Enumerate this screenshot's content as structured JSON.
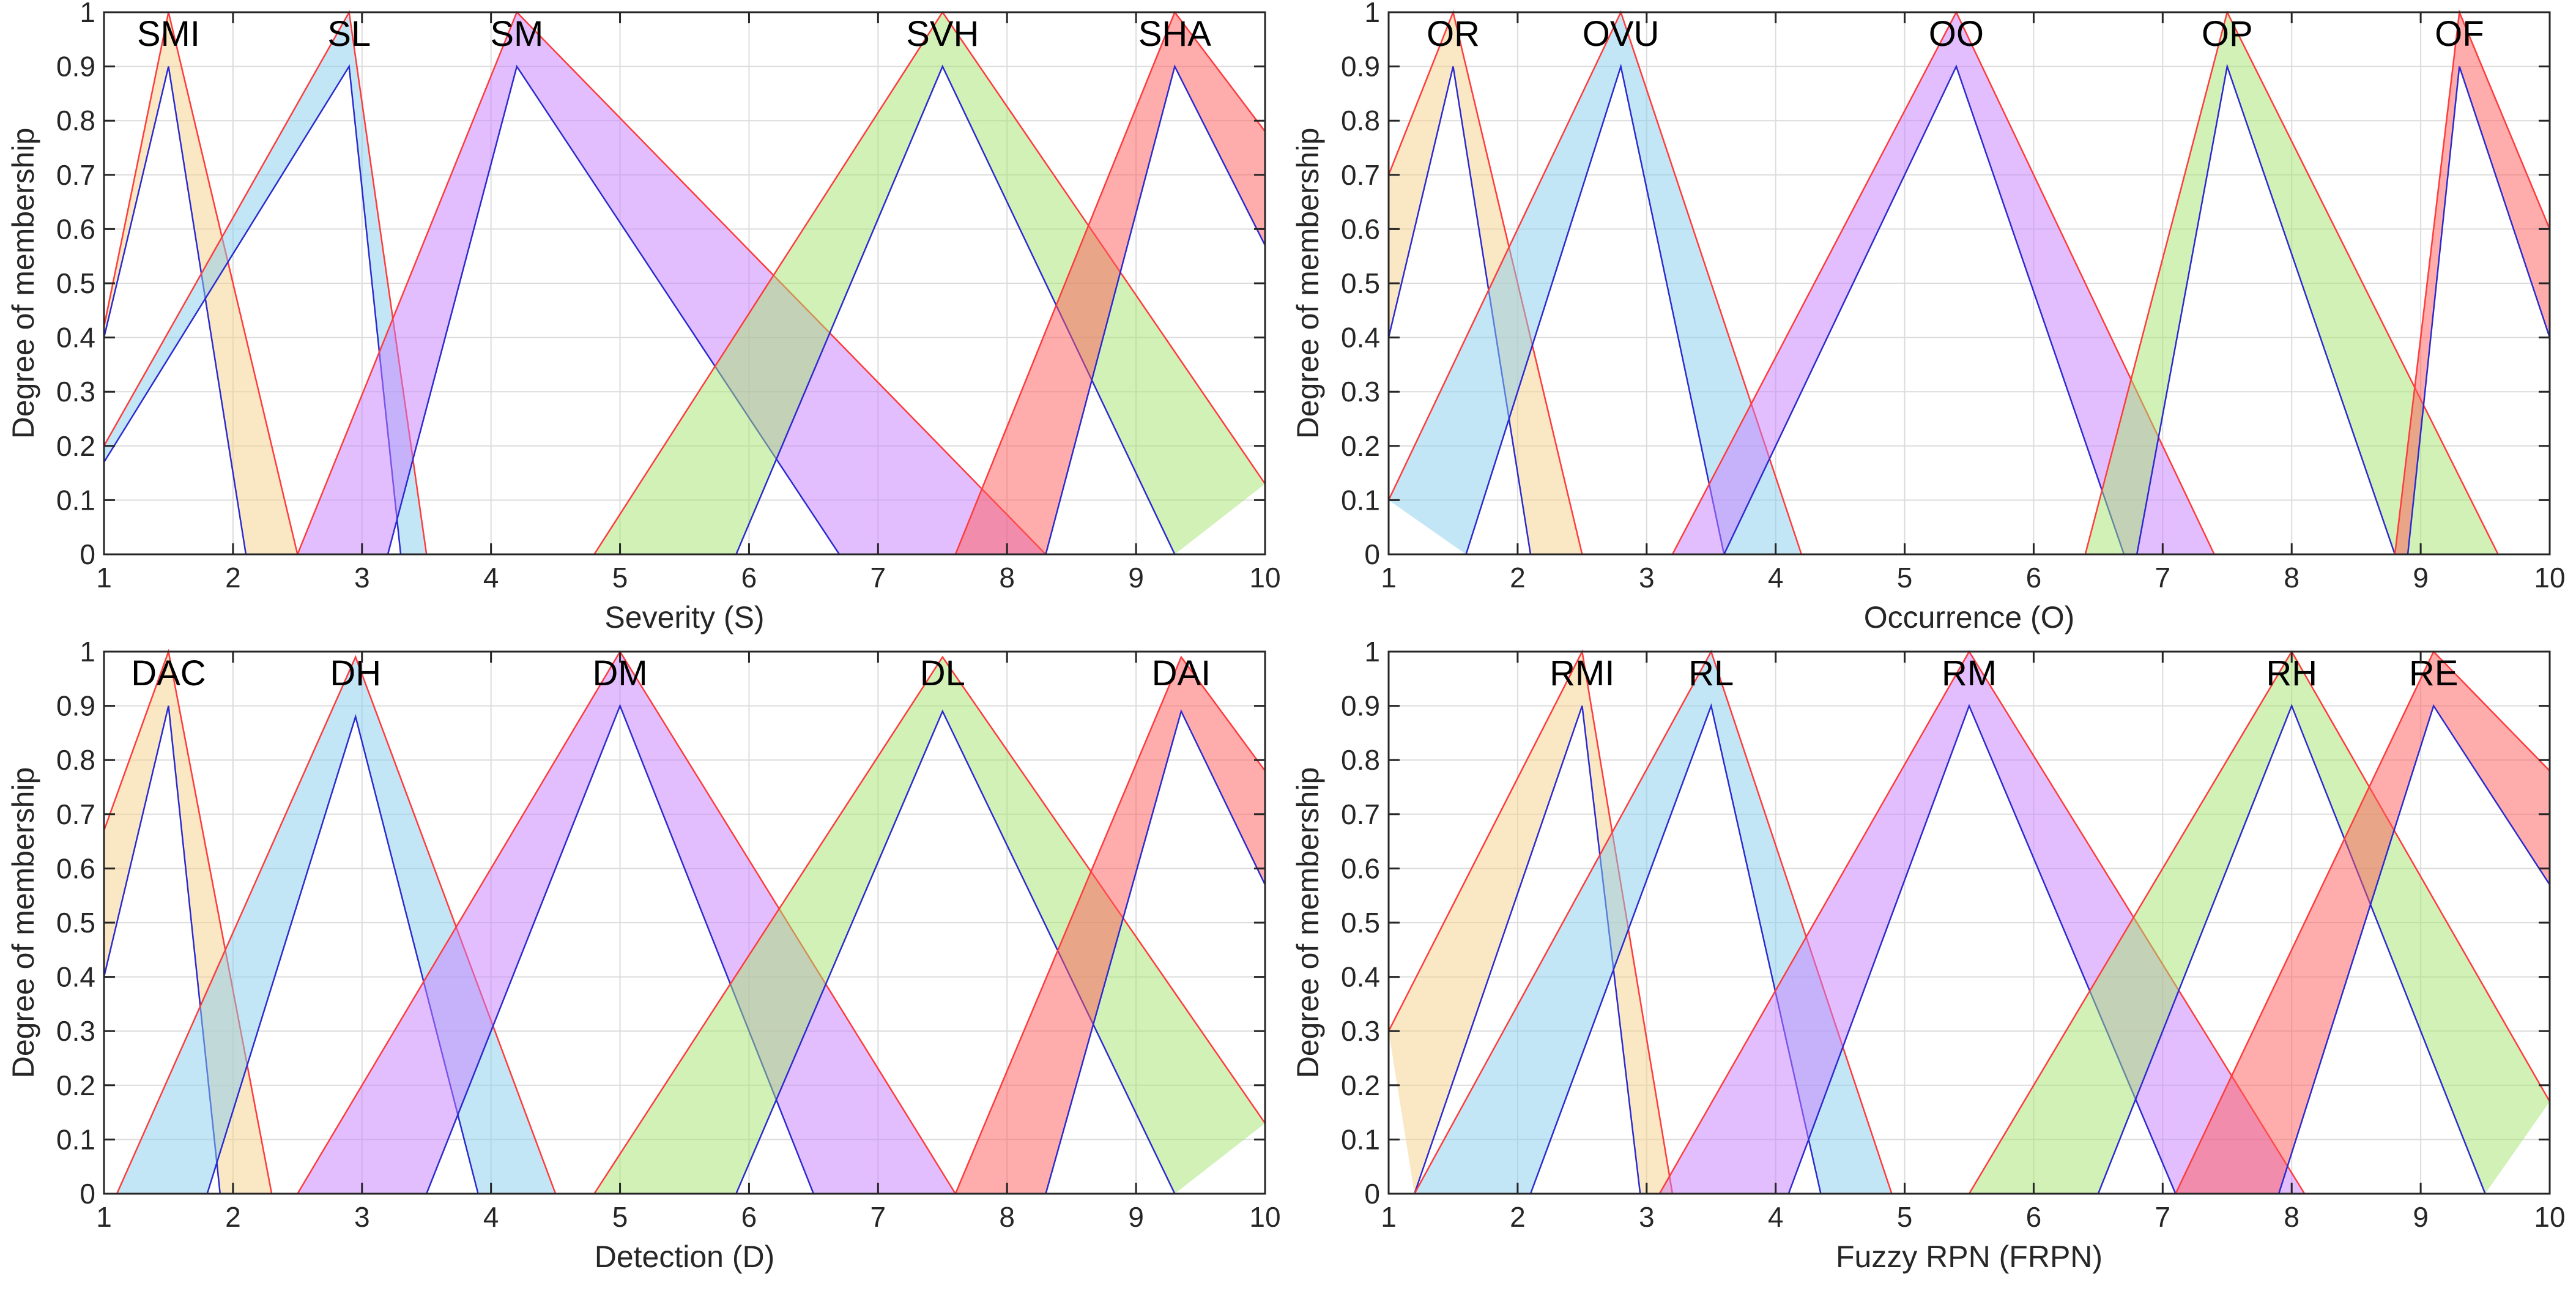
{
  "chart_data": [
    {
      "type": "area",
      "title": "",
      "xlabel": "Severity (S)",
      "ylabel": "Degree of membership",
      "xlim": [
        1,
        10
      ],
      "ylim": [
        0,
        1
      ],
      "grid": true,
      "x_ticks": [
        "1",
        "2",
        "3",
        "4",
        "5",
        "6",
        "7",
        "8",
        "9",
        "10"
      ],
      "y_ticks": [
        "0",
        "0.1",
        "0.2",
        "0.3",
        "0.4",
        "0.5",
        "0.6",
        "0.7",
        "0.8",
        "0.9",
        "1"
      ],
      "series": [
        {
          "name": "SMI",
          "color": "#f5d08a",
          "upper": [
            [
              1,
              0.42
            ],
            [
              1.5,
              1
            ],
            [
              2.5,
              0
            ]
          ],
          "lower": [
            [
              1,
              0.4
            ],
            [
              1.5,
              0.9
            ],
            [
              2.1,
              0
            ]
          ]
        },
        {
          "name": "SL",
          "color": "#87cdee",
          "upper": [
            [
              1,
              0.2
            ],
            [
              2.9,
              1
            ],
            [
              3.5,
              0
            ]
          ],
          "lower": [
            [
              1,
              0.17
            ],
            [
              2.9,
              0.9
            ],
            [
              3.3,
              0
            ]
          ]
        },
        {
          "name": "SM",
          "color": "#c77dff",
          "upper": [
            [
              2.5,
              0
            ],
            [
              4.2,
              1
            ],
            [
              8.3,
              0
            ]
          ],
          "lower": [
            [
              3.2,
              0
            ],
            [
              4.2,
              0.9
            ],
            [
              6.7,
              0
            ]
          ]
        },
        {
          "name": "SVH",
          "color": "#a3e36e",
          "upper": [
            [
              4.8,
              0
            ],
            [
              7.5,
              1
            ],
            [
              10,
              0.13
            ]
          ],
          "lower": [
            [
              5.9,
              0
            ],
            [
              7.5,
              0.9
            ],
            [
              9.3,
              0
            ]
          ]
        },
        {
          "name": "SHA",
          "color": "#ff5a5a",
          "upper": [
            [
              7.6,
              0
            ],
            [
              9.3,
              1
            ],
            [
              10,
              0.78
            ]
          ],
          "lower": [
            [
              8.3,
              0
            ],
            [
              9.3,
              0.9
            ],
            [
              10,
              0.57
            ]
          ]
        }
      ]
    },
    {
      "type": "area",
      "title": "",
      "xlabel": "Occurrence (O)",
      "ylabel": "Degree of membership",
      "xlim": [
        1,
        10
      ],
      "ylim": [
        0,
        1
      ],
      "grid": true,
      "x_ticks": [
        "1",
        "2",
        "3",
        "4",
        "5",
        "6",
        "7",
        "8",
        "9",
        "10"
      ],
      "y_ticks": [
        "0",
        "0.1",
        "0.2",
        "0.3",
        "0.4",
        "0.5",
        "0.6",
        "0.7",
        "0.8",
        "0.9",
        "1"
      ],
      "series": [
        {
          "name": "OR",
          "color": "#f5d08a",
          "upper": [
            [
              1,
              0.7
            ],
            [
              1.5,
              1
            ],
            [
              2.5,
              0
            ]
          ],
          "lower": [
            [
              1,
              0.4
            ],
            [
              1.5,
              0.9
            ],
            [
              2.1,
              0
            ]
          ]
        },
        {
          "name": "OVU",
          "color": "#87cdee",
          "upper": [
            [
              1,
              0.1
            ],
            [
              2.8,
              1
            ],
            [
              4.2,
              0
            ]
          ],
          "lower": [
            [
              1.6,
              0
            ],
            [
              2.8,
              0.9
            ],
            [
              3.6,
              0
            ]
          ]
        },
        {
          "name": "OO",
          "color": "#c77dff",
          "upper": [
            [
              3.2,
              0
            ],
            [
              5.4,
              1
            ],
            [
              7.4,
              0
            ]
          ],
          "lower": [
            [
              3.6,
              0
            ],
            [
              5.4,
              0.9
            ],
            [
              6.7,
              0
            ]
          ]
        },
        {
          "name": "OP",
          "color": "#a3e36e",
          "upper": [
            [
              6.4,
              0
            ],
            [
              7.5,
              1
            ],
            [
              9.6,
              0
            ]
          ],
          "lower": [
            [
              6.8,
              0
            ],
            [
              7.5,
              0.9
            ],
            [
              8.8,
              0
            ]
          ]
        },
        {
          "name": "OF",
          "color": "#ff5a5a",
          "upper": [
            [
              8.8,
              0
            ],
            [
              9.3,
              1
            ],
            [
              10,
              0.6
            ]
          ],
          "lower": [
            [
              8.9,
              0
            ],
            [
              9.3,
              0.9
            ],
            [
              10,
              0.4
            ]
          ]
        }
      ]
    },
    {
      "type": "area",
      "title": "",
      "xlabel": "Detection (D)",
      "ylabel": "Degree of membership",
      "xlim": [
        1,
        10
      ],
      "ylim": [
        0,
        1
      ],
      "grid": true,
      "x_ticks": [
        "1",
        "2",
        "3",
        "4",
        "5",
        "6",
        "7",
        "8",
        "9",
        "10"
      ],
      "y_ticks": [
        "0",
        "0.1",
        "0.2",
        "0.3",
        "0.4",
        "0.5",
        "0.6",
        "0.7",
        "0.8",
        "0.9",
        "1"
      ],
      "series": [
        {
          "name": "DAC",
          "color": "#f5d08a",
          "upper": [
            [
              1,
              0.67
            ],
            [
              1.5,
              1
            ],
            [
              2.3,
              0
            ]
          ],
          "lower": [
            [
              1,
              0.4
            ],
            [
              1.5,
              0.9
            ],
            [
              1.9,
              0
            ]
          ]
        },
        {
          "name": "DH",
          "color": "#87cdee",
          "upper": [
            [
              1.1,
              0
            ],
            [
              2.95,
              0.99
            ],
            [
              4.5,
              0
            ]
          ],
          "lower": [
            [
              1.8,
              0
            ],
            [
              2.95,
              0.88
            ],
            [
              3.9,
              0
            ]
          ]
        },
        {
          "name": "DM",
          "color": "#c77dff",
          "upper": [
            [
              2.5,
              0
            ],
            [
              5,
              1
            ],
            [
              7.6,
              0
            ]
          ],
          "lower": [
            [
              3.5,
              0
            ],
            [
              5,
              0.9
            ],
            [
              6.5,
              0
            ]
          ]
        },
        {
          "name": "DL",
          "color": "#a3e36e",
          "upper": [
            [
              4.8,
              0
            ],
            [
              7.5,
              0.99
            ],
            [
              10,
              0.13
            ]
          ],
          "lower": [
            [
              5.9,
              0
            ],
            [
              7.5,
              0.89
            ],
            [
              9.3,
              0
            ]
          ]
        },
        {
          "name": "DAI",
          "color": "#ff5a5a",
          "upper": [
            [
              7.6,
              0
            ],
            [
              9.35,
              0.99
            ],
            [
              10,
              0.78
            ]
          ],
          "lower": [
            [
              8.3,
              0
            ],
            [
              9.35,
              0.89
            ],
            [
              10,
              0.57
            ]
          ]
        }
      ]
    },
    {
      "type": "area",
      "title": "",
      "xlabel": "Fuzzy RPN (FRPN)",
      "ylabel": "Degree of membership",
      "xlim": [
        1,
        10
      ],
      "ylim": [
        0,
        1
      ],
      "grid": true,
      "x_ticks": [
        "1",
        "2",
        "3",
        "4",
        "5",
        "6",
        "7",
        "8",
        "9",
        "10"
      ],
      "y_ticks": [
        "0",
        "0.1",
        "0.2",
        "0.3",
        "0.4",
        "0.5",
        "0.6",
        "0.7",
        "0.8",
        "0.9",
        "1"
      ],
      "series": [
        {
          "name": "RMI",
          "color": "#f5d08a",
          "upper": [
            [
              1,
              0.3
            ],
            [
              2.5,
              1
            ],
            [
              3.2,
              0
            ]
          ],
          "lower": [
            [
              1.2,
              0
            ],
            [
              2.5,
              0.9
            ],
            [
              2.95,
              0
            ]
          ]
        },
        {
          "name": "RL",
          "color": "#87cdee",
          "upper": [
            [
              1.2,
              0
            ],
            [
              3.5,
              1
            ],
            [
              4.9,
              0
            ]
          ],
          "lower": [
            [
              2.1,
              0
            ],
            [
              3.5,
              0.9
            ],
            [
              4.35,
              0
            ]
          ]
        },
        {
          "name": "RM",
          "color": "#c77dff",
          "upper": [
            [
              3.1,
              0
            ],
            [
              5.5,
              1
            ],
            [
              8.1,
              0
            ]
          ],
          "lower": [
            [
              4.1,
              0
            ],
            [
              5.5,
              0.9
            ],
            [
              7.1,
              0
            ]
          ]
        },
        {
          "name": "RH",
          "color": "#a3e36e",
          "upper": [
            [
              5.5,
              0
            ],
            [
              8,
              1
            ],
            [
              10,
              0.17
            ]
          ],
          "lower": [
            [
              6.5,
              0
            ],
            [
              8,
              0.9
            ],
            [
              9.5,
              0
            ]
          ]
        },
        {
          "name": "RE",
          "color": "#ff5a5a",
          "upper": [
            [
              7.1,
              0
            ],
            [
              9.1,
              1
            ],
            [
              10,
              0.78
            ]
          ],
          "lower": [
            [
              7.9,
              0
            ],
            [
              9.1,
              0.9
            ],
            [
              10,
              0.57
            ]
          ]
        }
      ]
    }
  ]
}
